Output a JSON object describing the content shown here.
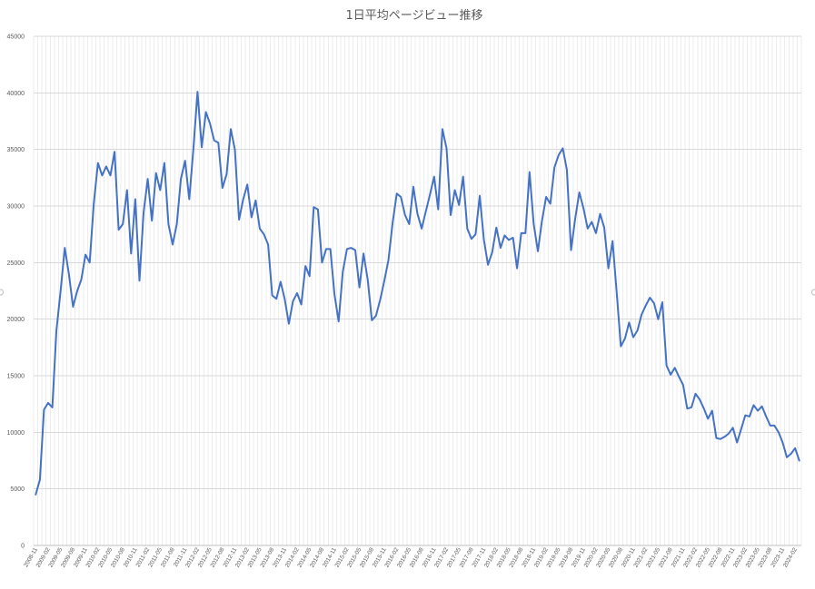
{
  "chart_data": {
    "type": "line",
    "title": "1日平均ページビュー推移",
    "xlabel": "",
    "ylabel": "",
    "ylim": [
      0,
      45000
    ],
    "yticks": [
      0,
      5000,
      10000,
      15000,
      20000,
      25000,
      30000,
      35000,
      40000,
      45000
    ],
    "grid": true,
    "legend": "none",
    "start_month": "2008-11",
    "tick_every_months": 3,
    "tick_labels": [
      "2008-11",
      "2009-02",
      "2009-05",
      "2009-08",
      "2009-11",
      "2010-02",
      "2010-05",
      "2010-08",
      "2010-11",
      "2011-02",
      "2011-05",
      "2011-08",
      "2011-11",
      "2012-02",
      "2012-05",
      "2012-08",
      "2012-11",
      "2013-02",
      "2013-05",
      "2013-08",
      "2013-11",
      "2014-02",
      "2014-05",
      "2014-08",
      "2014-11",
      "2015-02",
      "2015-05",
      "2015-08",
      "2015-11",
      "2016-02",
      "2016-05",
      "2016-08",
      "2016-11",
      "2017-02",
      "2017-05",
      "2017-08",
      "2017-11",
      "2018-02",
      "2018-05",
      "2018-08",
      "2018-11",
      "2019-02",
      "2019-05",
      "2019-08",
      "2019-11",
      "2020-02",
      "2020-05",
      "2020-08",
      "2020-11",
      "2021-02",
      "2021-05",
      "2021-08",
      "2021-11",
      "2022-02",
      "2022-05",
      "2022-08",
      "2022-11",
      "2023-02",
      "2023-05",
      "2023-08",
      "2023-11",
      "2024-02"
    ],
    "series": [
      {
        "color": "#4472c4",
        "values": [
          4500,
          5800,
          12000,
          12600,
          12200,
          19000,
          22500,
          26300,
          24000,
          21100,
          22500,
          23500,
          25700,
          25000,
          30200,
          33800,
          32700,
          33500,
          32700,
          34800,
          27900,
          28400,
          31400,
          25800,
          30600,
          23400,
          29400,
          32400,
          28700,
          32900,
          31400,
          33800,
          28400,
          26600,
          28400,
          32400,
          34000,
          30600,
          35100,
          40100,
          35200,
          38300,
          37300,
          35800,
          35600,
          31600,
          32800,
          36800,
          35000,
          28800,
          30600,
          31900,
          29000,
          30500,
          28000,
          27500,
          26600,
          22100,
          21800,
          23300,
          21800,
          19600,
          21600,
          22300,
          21300,
          24700,
          23800,
          29900,
          29700,
          25000,
          26200,
          26200,
          22200,
          19800,
          24200,
          26200,
          26300,
          26100,
          22800,
          25800,
          23500,
          19900,
          20300,
          21700,
          23400,
          25200,
          28500,
          31100,
          30800,
          29200,
          28400,
          31700,
          29300,
          28000,
          29500,
          31000,
          32600,
          29700,
          36800,
          35100,
          29200,
          31400,
          30100,
          32600,
          28000,
          27100,
          27500,
          30900,
          27000,
          24800,
          25900,
          28100,
          26300,
          27400,
          27000,
          27200,
          24500,
          27600,
          27600,
          33000,
          28400,
          26000,
          28700,
          30800,
          30200,
          33400,
          34500,
          35100,
          33200,
          26100,
          28900,
          31200,
          29800,
          28000,
          28600,
          27600,
          29300,
          28100,
          24500,
          26900,
          22400,
          17600,
          18300,
          19700,
          18400,
          19000,
          20400,
          21200,
          21900,
          21400,
          20000,
          21500,
          15900,
          15100,
          15700,
          14900,
          14200,
          12100,
          12200,
          13400,
          12900,
          12100,
          11200,
          11900,
          9500,
          9400,
          9600,
          9900,
          10400,
          9100,
          10300,
          11500,
          11400,
          12400,
          11900,
          12300,
          11400,
          10600,
          10600,
          10000,
          9100,
          7800,
          8100,
          8600,
          7500
        ]
      }
    ]
  }
}
